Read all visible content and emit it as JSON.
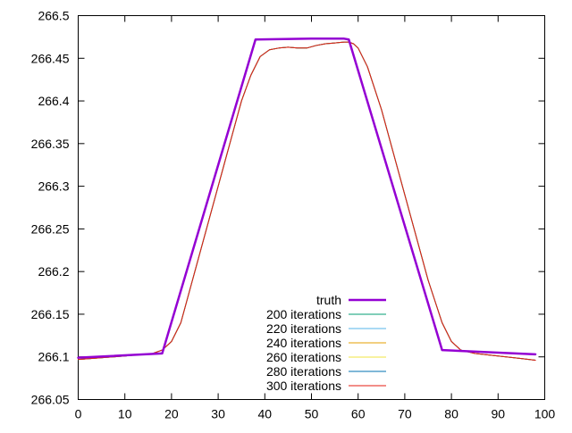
{
  "chart_data": {
    "type": "line",
    "title": "",
    "xlabel": "",
    "ylabel": "",
    "xlim": [
      0,
      100
    ],
    "ylim": [
      266.05,
      266.5
    ],
    "xticks": [
      0,
      10,
      20,
      30,
      40,
      50,
      60,
      70,
      80,
      90,
      100
    ],
    "yticks": [
      266.05,
      266.1,
      266.15,
      266.2,
      266.25,
      266.3,
      266.35,
      266.4,
      266.45,
      266.5
    ],
    "xtick_labels": [
      "0",
      "10",
      "20",
      "30",
      "40",
      "50",
      "60",
      "70",
      "80",
      "90",
      "100"
    ],
    "ytick_labels": [
      "266.05",
      "266.1",
      "266.15",
      "266.2",
      "266.25",
      "266.3",
      "266.35",
      "266.4",
      "266.45",
      "266.5"
    ],
    "grid": false,
    "legend_position": "bottom-center",
    "series": [
      {
        "name": "truth",
        "color": "#9400d3",
        "width": 2.5,
        "x": [
          0,
          18,
          38,
          50,
          57,
          58,
          78,
          98
        ],
        "y": [
          266.099,
          266.104,
          266.472,
          266.473,
          266.473,
          266.472,
          266.108,
          266.103
        ]
      },
      {
        "name": "200 iterations",
        "color": "#009e73",
        "width": 1,
        "x": [
          0,
          10,
          16,
          18,
          20,
          22,
          25,
          30,
          35,
          37,
          39,
          41,
          43,
          45,
          47,
          49,
          51,
          53,
          55,
          57,
          58,
          59,
          60,
          62,
          65,
          70,
          75,
          78,
          80,
          82,
          85,
          90,
          95,
          98
        ],
        "y": [
          266.097,
          266.101,
          266.104,
          266.108,
          266.118,
          266.14,
          266.2,
          266.3,
          266.4,
          266.43,
          266.452,
          266.46,
          266.462,
          266.463,
          266.462,
          266.462,
          266.465,
          266.467,
          266.468,
          266.469,
          266.469,
          266.467,
          266.462,
          266.44,
          266.39,
          266.29,
          266.19,
          266.14,
          266.118,
          266.108,
          266.104,
          266.101,
          266.098,
          266.096
        ]
      },
      {
        "name": "220 iterations",
        "color": "#56b4e9",
        "width": 1,
        "x": [
          0,
          10,
          16,
          18,
          20,
          22,
          25,
          30,
          35,
          37,
          39,
          41,
          43,
          45,
          47,
          49,
          51,
          53,
          55,
          57,
          58,
          59,
          60,
          62,
          65,
          70,
          75,
          78,
          80,
          82,
          85,
          90,
          95,
          98
        ],
        "y": [
          266.097,
          266.101,
          266.104,
          266.108,
          266.118,
          266.14,
          266.2,
          266.3,
          266.4,
          266.43,
          266.452,
          266.46,
          266.462,
          266.463,
          266.462,
          266.462,
          266.465,
          266.467,
          266.468,
          266.469,
          266.469,
          266.467,
          266.462,
          266.44,
          266.39,
          266.29,
          266.19,
          266.14,
          266.118,
          266.108,
          266.104,
          266.101,
          266.098,
          266.096
        ]
      },
      {
        "name": "240 iterations",
        "color": "#e69f00",
        "width": 1,
        "x": [
          0,
          10,
          16,
          18,
          20,
          22,
          25,
          30,
          35,
          37,
          39,
          41,
          43,
          45,
          47,
          49,
          51,
          53,
          55,
          57,
          58,
          59,
          60,
          62,
          65,
          70,
          75,
          78,
          80,
          82,
          85,
          90,
          95,
          98
        ],
        "y": [
          266.097,
          266.101,
          266.104,
          266.108,
          266.118,
          266.14,
          266.2,
          266.3,
          266.4,
          266.43,
          266.452,
          266.46,
          266.462,
          266.463,
          266.462,
          266.462,
          266.465,
          266.467,
          266.468,
          266.469,
          266.469,
          266.467,
          266.462,
          266.44,
          266.39,
          266.29,
          266.19,
          266.14,
          266.118,
          266.108,
          266.104,
          266.101,
          266.098,
          266.096
        ]
      },
      {
        "name": "260 iterations",
        "color": "#f0e442",
        "width": 1,
        "x": [
          0,
          10,
          16,
          18,
          20,
          22,
          25,
          30,
          35,
          37,
          39,
          41,
          43,
          45,
          47,
          49,
          51,
          53,
          55,
          57,
          58,
          59,
          60,
          62,
          65,
          70,
          75,
          78,
          80,
          82,
          85,
          90,
          95,
          98
        ],
        "y": [
          266.097,
          266.101,
          266.104,
          266.108,
          266.118,
          266.14,
          266.2,
          266.3,
          266.4,
          266.43,
          266.452,
          266.46,
          266.462,
          266.463,
          266.462,
          266.462,
          266.465,
          266.467,
          266.468,
          266.469,
          266.469,
          266.467,
          266.462,
          266.44,
          266.39,
          266.29,
          266.19,
          266.14,
          266.118,
          266.108,
          266.104,
          266.101,
          266.098,
          266.096
        ]
      },
      {
        "name": "280 iterations",
        "color": "#0072b2",
        "width": 1,
        "x": [
          0,
          10,
          16,
          18,
          20,
          22,
          25,
          30,
          35,
          37,
          39,
          41,
          43,
          45,
          47,
          49,
          51,
          53,
          55,
          57,
          58,
          59,
          60,
          62,
          65,
          70,
          75,
          78,
          80,
          82,
          85,
          90,
          95,
          98
        ],
        "y": [
          266.097,
          266.101,
          266.104,
          266.108,
          266.118,
          266.14,
          266.2,
          266.3,
          266.4,
          266.43,
          266.452,
          266.46,
          266.462,
          266.463,
          266.462,
          266.462,
          266.465,
          266.467,
          266.468,
          266.469,
          266.469,
          266.467,
          266.462,
          266.44,
          266.39,
          266.29,
          266.19,
          266.14,
          266.118,
          266.108,
          266.104,
          266.101,
          266.098,
          266.096
        ]
      },
      {
        "name": "300 iterations",
        "color": "#e51e10",
        "width": 1,
        "x": [
          0,
          10,
          16,
          18,
          20,
          22,
          25,
          30,
          35,
          37,
          39,
          41,
          43,
          45,
          47,
          49,
          51,
          53,
          55,
          57,
          58,
          59,
          60,
          62,
          65,
          70,
          75,
          78,
          80,
          82,
          85,
          90,
          95,
          98
        ],
        "y": [
          266.097,
          266.101,
          266.104,
          266.108,
          266.118,
          266.14,
          266.2,
          266.3,
          266.4,
          266.43,
          266.452,
          266.46,
          266.462,
          266.463,
          266.462,
          266.462,
          266.465,
          266.467,
          266.468,
          266.469,
          266.469,
          266.467,
          266.462,
          266.44,
          266.39,
          266.29,
          266.19,
          266.14,
          266.118,
          266.108,
          266.104,
          266.101,
          266.098,
          266.096
        ]
      }
    ]
  }
}
